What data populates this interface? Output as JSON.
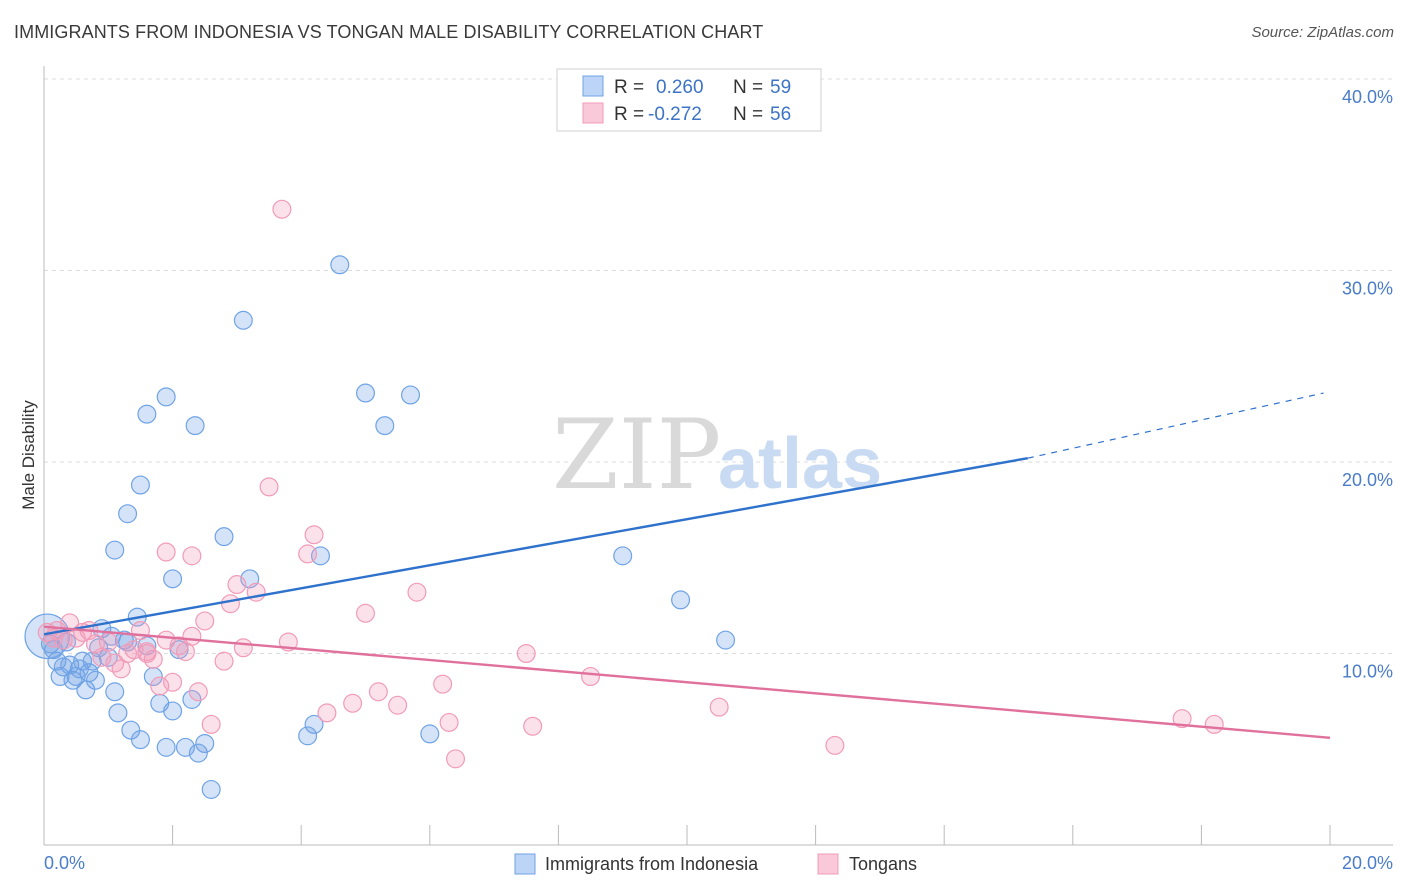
{
  "chart_data": {
    "type": "scatter",
    "title": "IMMIGRANTS FROM INDONESIA VS TONGAN MALE DISABILITY CORRELATION CHART",
    "source": "Source: ZipAtlas.com",
    "ylabel": "Male Disability",
    "xlabel": "",
    "xlim": [
      0,
      20
    ],
    "ylim": [
      0,
      40
    ],
    "y_ticks": [
      "10.0%",
      "20.0%",
      "30.0%",
      "40.0%"
    ],
    "x_tick_labels": [
      "0.0%",
      "20.0%"
    ],
    "watermark": {
      "zip": "ZIP",
      "atlas": "atlas"
    },
    "legend": {
      "rows": [
        {
          "r_label": "R =",
          "r_value": "0.260",
          "n_label": "N =",
          "n_value": "59"
        },
        {
          "r_label": "R =",
          "r_value": "-0.272",
          "n_label": "N =",
          "n_value": "56"
        }
      ]
    },
    "series": [
      {
        "name": "Immigrants from Indonesia",
        "color": "#6fa3e6",
        "line_color": "#2f72cc",
        "trend": {
          "x0": 0,
          "y0": 11.0,
          "x1": 15.3,
          "y1": 20.2,
          "dash_to_x": 19.9,
          "dash_to_y": 23.6
        },
        "points": [
          [
            0.05,
            10.9
          ],
          [
            0.1,
            10.5
          ],
          [
            0.15,
            10.2
          ],
          [
            0.2,
            9.6
          ],
          [
            0.25,
            8.8
          ],
          [
            0.3,
            9.3
          ],
          [
            0.35,
            10.6
          ],
          [
            0.4,
            9.4
          ],
          [
            0.45,
            8.6
          ],
          [
            0.5,
            8.8
          ],
          [
            0.55,
            9.2
          ],
          [
            0.6,
            9.6
          ],
          [
            0.65,
            8.1
          ],
          [
            0.7,
            9.0
          ],
          [
            0.75,
            9.6
          ],
          [
            0.8,
            8.6
          ],
          [
            0.85,
            10.3
          ],
          [
            0.9,
            11.3
          ],
          [
            1.0,
            9.8
          ],
          [
            1.05,
            10.9
          ],
          [
            1.1,
            8.0
          ],
          [
            1.15,
            6.9
          ],
          [
            1.25,
            10.7
          ],
          [
            1.3,
            10.6
          ],
          [
            1.35,
            6.0
          ],
          [
            1.45,
            11.9
          ],
          [
            1.5,
            5.5
          ],
          [
            1.6,
            10.4
          ],
          [
            1.7,
            8.8
          ],
          [
            1.8,
            7.4
          ],
          [
            1.9,
            5.1
          ],
          [
            2.0,
            7.0
          ],
          [
            2.1,
            10.2
          ],
          [
            2.2,
            5.1
          ],
          [
            2.3,
            7.6
          ],
          [
            2.4,
            4.8
          ],
          [
            2.5,
            5.3
          ],
          [
            2.6,
            2.9
          ],
          [
            1.1,
            15.4
          ],
          [
            1.3,
            17.3
          ],
          [
            1.5,
            18.8
          ],
          [
            1.6,
            22.5
          ],
          [
            1.9,
            23.4
          ],
          [
            2.0,
            13.9
          ],
          [
            2.35,
            21.9
          ],
          [
            2.8,
            16.1
          ],
          [
            3.2,
            13.9
          ],
          [
            3.1,
            27.4
          ],
          [
            4.2,
            6.3
          ],
          [
            4.3,
            15.1
          ],
          [
            4.6,
            30.3
          ],
          [
            5.0,
            23.6
          ],
          [
            5.3,
            21.9
          ],
          [
            5.7,
            23.5
          ],
          [
            6.0,
            5.8
          ],
          [
            9.0,
            15.1
          ],
          [
            9.9,
            12.8
          ],
          [
            10.6,
            10.7
          ],
          [
            4.1,
            5.7
          ]
        ],
        "sizes": [
          30,
          12,
          12,
          12,
          12,
          12,
          12,
          12,
          12,
          12,
          12,
          12,
          12,
          12,
          12,
          12,
          12,
          12,
          12,
          12,
          12,
          12,
          12,
          12,
          12,
          12,
          12,
          12,
          12,
          12,
          12,
          12,
          12,
          12,
          12,
          12,
          12,
          12,
          12,
          12,
          12,
          12,
          12,
          12,
          12,
          12,
          12,
          12,
          12,
          12,
          12,
          12,
          12,
          12,
          12,
          12,
          12,
          12,
          12
        ]
      },
      {
        "name": "Tongans",
        "color": "#f19bb8",
        "line_color": "#e0709c",
        "trend": {
          "x0": 0,
          "y0": 11.4,
          "x1": 20,
          "y1": 5.6
        },
        "points": [
          [
            0.05,
            11.1
          ],
          [
            0.15,
            10.8
          ],
          [
            0.2,
            11.2
          ],
          [
            0.3,
            10.7
          ],
          [
            0.4,
            11.6
          ],
          [
            0.5,
            10.8
          ],
          [
            0.6,
            11.1
          ],
          [
            0.7,
            11.2
          ],
          [
            0.8,
            10.5
          ],
          [
            0.9,
            9.8
          ],
          [
            1.0,
            10.6
          ],
          [
            1.1,
            9.5
          ],
          [
            1.2,
            9.2
          ],
          [
            1.3,
            10.0
          ],
          [
            1.4,
            10.2
          ],
          [
            1.5,
            11.2
          ],
          [
            1.6,
            10.0
          ],
          [
            1.7,
            9.7
          ],
          [
            1.8,
            8.3
          ],
          [
            1.9,
            10.7
          ],
          [
            2.0,
            8.5
          ],
          [
            2.1,
            10.4
          ],
          [
            2.2,
            10.1
          ],
          [
            2.3,
            10.9
          ],
          [
            2.4,
            8.0
          ],
          [
            2.5,
            11.7
          ],
          [
            2.6,
            6.3
          ],
          [
            2.8,
            9.6
          ],
          [
            3.0,
            13.6
          ],
          [
            3.1,
            10.3
          ],
          [
            3.3,
            13.2
          ],
          [
            3.5,
            18.7
          ],
          [
            3.7,
            33.2
          ],
          [
            3.8,
            10.6
          ],
          [
            4.1,
            15.2
          ],
          [
            4.2,
            16.2
          ],
          [
            4.4,
            6.9
          ],
          [
            4.8,
            7.4
          ],
          [
            5.0,
            12.1
          ],
          [
            5.2,
            8.0
          ],
          [
            5.5,
            7.3
          ],
          [
            5.8,
            13.2
          ],
          [
            6.2,
            8.4
          ],
          [
            6.3,
            6.4
          ],
          [
            6.4,
            4.5
          ],
          [
            7.5,
            10.0
          ],
          [
            7.6,
            6.2
          ],
          [
            8.5,
            8.8
          ],
          [
            10.5,
            7.2
          ],
          [
            12.3,
            5.2
          ],
          [
            17.7,
            6.6
          ],
          [
            18.2,
            6.3
          ],
          [
            2.3,
            15.1
          ],
          [
            1.9,
            15.3
          ],
          [
            2.9,
            12.6
          ],
          [
            1.6,
            10.1
          ]
        ],
        "sizes": [
          12,
          12,
          12,
          12,
          12,
          12,
          12,
          12,
          12,
          12,
          12,
          12,
          12,
          12,
          12,
          12,
          12,
          12,
          12,
          12,
          12,
          12,
          12,
          12,
          12,
          12,
          12,
          12,
          12,
          12,
          12,
          12,
          12,
          12,
          12,
          12,
          12,
          12,
          12,
          12,
          12,
          12,
          12,
          12,
          12,
          12,
          12,
          12,
          12,
          12,
          12,
          12,
          12,
          12,
          12,
          12
        ]
      }
    ]
  }
}
